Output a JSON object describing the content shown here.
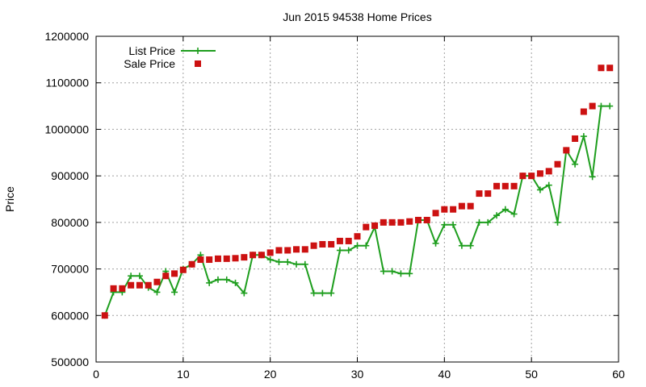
{
  "chart_data": {
    "type": "line",
    "title": "Jun 2015 94538 Home Prices",
    "xlabel": "",
    "ylabel": "Price",
    "xlim": [
      0,
      60
    ],
    "ylim": [
      500000,
      1200000
    ],
    "xticks": [
      0,
      10,
      20,
      30,
      40,
      50,
      60
    ],
    "yticks": [
      500000,
      600000,
      700000,
      800000,
      900000,
      1000000,
      1100000,
      1200000
    ],
    "grid": true,
    "legend_position": "top-left",
    "series": [
      {
        "name": "List Price",
        "style": "line-plus",
        "color": "#1e9e1e",
        "points": [
          [
            1,
            600000
          ],
          [
            2,
            650000
          ],
          [
            3,
            650000
          ],
          [
            4,
            685000
          ],
          [
            5,
            685000
          ],
          [
            6,
            660000
          ],
          [
            7,
            650000
          ],
          [
            8,
            695000
          ],
          [
            9,
            650000
          ],
          [
            10,
            700000
          ],
          [
            11,
            710000
          ],
          [
            12,
            730000
          ],
          [
            13,
            670000
          ],
          [
            14,
            677000
          ],
          [
            15,
            677000
          ],
          [
            16,
            670000
          ],
          [
            17,
            648000
          ],
          [
            18,
            730000
          ],
          [
            19,
            730000
          ],
          [
            20,
            720000
          ],
          [
            21,
            715000
          ],
          [
            22,
            715000
          ],
          [
            23,
            710000
          ],
          [
            24,
            710000
          ],
          [
            25,
            648000
          ],
          [
            26,
            648000
          ],
          [
            27,
            648000
          ],
          [
            28,
            740000
          ],
          [
            29,
            740000
          ],
          [
            30,
            750000
          ],
          [
            31,
            750000
          ],
          [
            32,
            790000
          ],
          [
            33,
            695000
          ],
          [
            34,
            695000
          ],
          [
            35,
            690000
          ],
          [
            36,
            690000
          ],
          [
            37,
            805000
          ],
          [
            38,
            805000
          ],
          [
            39,
            755000
          ],
          [
            40,
            795000
          ],
          [
            41,
            795000
          ],
          [
            42,
            750000
          ],
          [
            43,
            750000
          ],
          [
            44,
            800000
          ],
          [
            45,
            800000
          ],
          [
            46,
            815000
          ],
          [
            47,
            828000
          ],
          [
            48,
            818000
          ],
          [
            49,
            900000
          ],
          [
            50,
            900000
          ],
          [
            51,
            870000
          ],
          [
            52,
            880000
          ],
          [
            53,
            800000
          ],
          [
            54,
            955000
          ],
          [
            55,
            925000
          ],
          [
            56,
            985000
          ],
          [
            57,
            898000
          ],
          [
            58,
            1050000
          ],
          [
            59,
            1050000
          ]
        ]
      },
      {
        "name": "Sale Price",
        "style": "square-marker",
        "color": "#cc1111",
        "points": [
          [
            1,
            600000
          ],
          [
            2,
            658000
          ],
          [
            3,
            658000
          ],
          [
            4,
            665000
          ],
          [
            5,
            665000
          ],
          [
            6,
            665000
          ],
          [
            7,
            672000
          ],
          [
            8,
            685000
          ],
          [
            9,
            690000
          ],
          [
            10,
            698000
          ],
          [
            11,
            710000
          ],
          [
            12,
            720000
          ],
          [
            13,
            720000
          ],
          [
            14,
            722000
          ],
          [
            15,
            722000
          ],
          [
            16,
            723000
          ],
          [
            17,
            725000
          ],
          [
            18,
            730000
          ],
          [
            19,
            730000
          ],
          [
            20,
            735000
          ],
          [
            21,
            740000
          ],
          [
            22,
            740000
          ],
          [
            23,
            742000
          ],
          [
            24,
            742000
          ],
          [
            25,
            750000
          ],
          [
            26,
            753000
          ],
          [
            27,
            753000
          ],
          [
            28,
            760000
          ],
          [
            29,
            760000
          ],
          [
            30,
            770000
          ],
          [
            31,
            790000
          ],
          [
            32,
            793000
          ],
          [
            33,
            800000
          ],
          [
            34,
            800000
          ],
          [
            35,
            800000
          ],
          [
            36,
            802000
          ],
          [
            37,
            805000
          ],
          [
            38,
            805000
          ],
          [
            39,
            820000
          ],
          [
            40,
            828000
          ],
          [
            41,
            828000
          ],
          [
            42,
            835000
          ],
          [
            43,
            835000
          ],
          [
            44,
            862000
          ],
          [
            45,
            862000
          ],
          [
            46,
            878000
          ],
          [
            47,
            878000
          ],
          [
            48,
            878000
          ],
          [
            49,
            900000
          ],
          [
            50,
            900000
          ],
          [
            51,
            905000
          ],
          [
            52,
            910000
          ],
          [
            53,
            925000
          ],
          [
            54,
            955000
          ],
          [
            55,
            980000
          ],
          [
            56,
            1038000
          ],
          [
            57,
            1050000
          ],
          [
            58,
            1132000
          ],
          [
            59,
            1132000
          ]
        ]
      }
    ]
  }
}
